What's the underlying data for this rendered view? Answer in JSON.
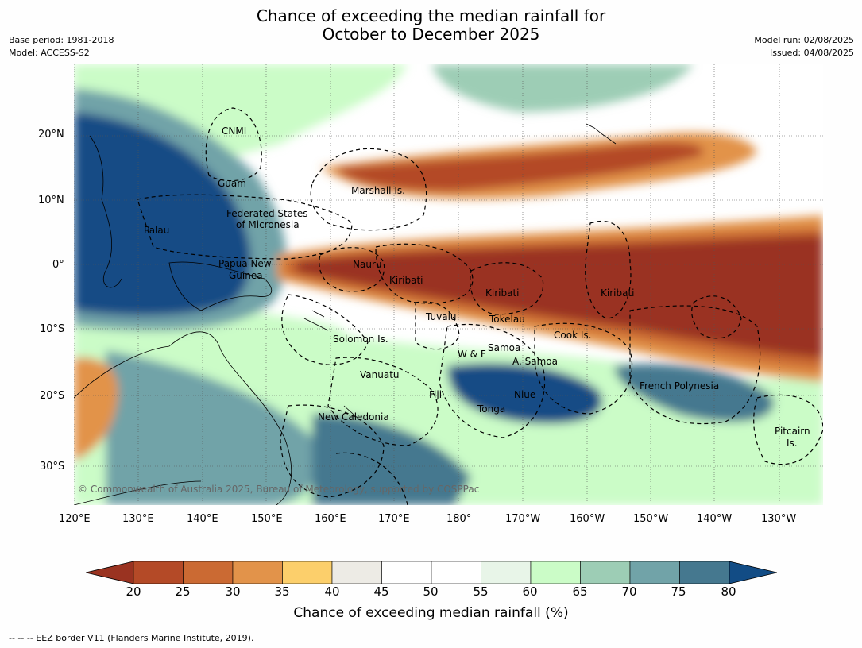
{
  "title_line1": "Chance of exceeding the median rainfall for",
  "title_line2": "October to December 2025",
  "meta": {
    "base_period": "Base period: 1981-2018",
    "model": "Model: ACCESS-S2",
    "model_run": "Model run: 02/08/2025",
    "issued": "Issued: 04/08/2025"
  },
  "lat_labels": [
    "20°N",
    "10°N",
    "0°",
    "10°S",
    "20°S",
    "30°S"
  ],
  "lon_labels": [
    "120°E",
    "130°E",
    "140°E",
    "150°E",
    "160°E",
    "170°E",
    "180°",
    "170°W",
    "160°W",
    "150°W",
    "140°W",
    "130°W"
  ],
  "places": {
    "cnmi": "CNMI",
    "guam": "Guam",
    "marshall": "Marshall Is.",
    "fsm1": "Federated States",
    "fsm2": "of Micronesia",
    "palau": "Palau",
    "png1": "Papua New",
    "png2": "Guinea",
    "nauru": "Nauru",
    "kiribati_w": "Kiribati",
    "kiribati_c": "Kiribati",
    "kiribati_e": "Kiribati",
    "tuvalu": "Tuvalu",
    "tokelau": "Tokelau",
    "solomon": "Solomon Is.",
    "cook": "Cook Is.",
    "samoa": "Samoa",
    "wf": "W & F",
    "asamoa": "A. Samoa",
    "vanuatu": "Vanuatu",
    "fiji": "Fiji",
    "niue": "Niue",
    "tonga": "Tonga",
    "fpoly": "French Polynesia",
    "newcal": "New Caledonia",
    "pitcairn1": "Pitcairn",
    "pitcairn2": "Is."
  },
  "credit": "© Commonwealth of Australia 2025, Bureau of Meteorology, supported by COSPPac",
  "colorbar": {
    "ticks": [
      "20",
      "25",
      "30",
      "35",
      "40",
      "45",
      "50",
      "55",
      "60",
      "65",
      "70",
      "75",
      "80"
    ],
    "colors": [
      "#9a3321",
      "#b44a27",
      "#cb6a33",
      "#e2934a",
      "#fccf6b",
      "#edebe5",
      "#ffffff",
      "#ffffff",
      "#e8f5e8",
      "#cbfcc7",
      "#9dcdb5",
      "#71a3a8",
      "#45788f",
      "#124c85"
    ],
    "label": "Chance of exceeding median rainfall (%)"
  },
  "footer": "--  --  -- EEZ border V11 (Flanders Marine Institute, 2019)."
}
